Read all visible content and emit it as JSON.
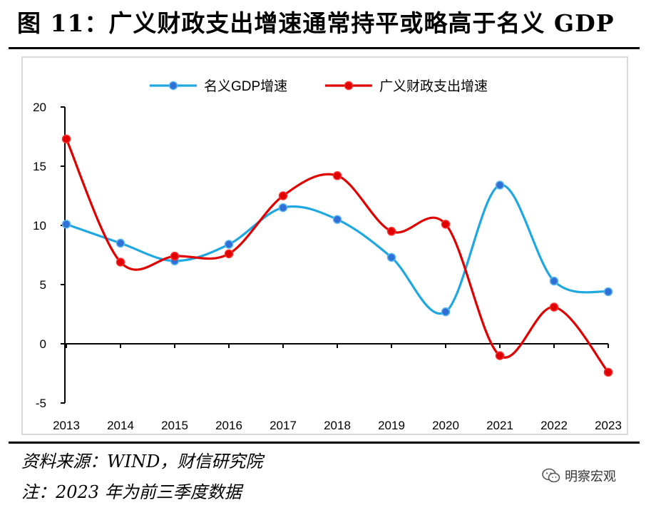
{
  "title": "图 11：广义财政支出增速通常持平或略高于名义 GDP",
  "notes": {
    "source": "资料来源：WIND，财信研究院",
    "note": "注：2023 年为前三季度数据"
  },
  "watermark": {
    "text": "明察宏观",
    "icon": "wechat-icon"
  },
  "chart_data": {
    "type": "line",
    "categories": [
      "2013",
      "2014",
      "2015",
      "2016",
      "2017",
      "2018",
      "2019",
      "2020",
      "2021",
      "2022",
      "2023"
    ],
    "series": [
      {
        "name": "名义GDP增速",
        "color": "#1ea7e0",
        "values": [
          10.1,
          8.5,
          7.0,
          8.4,
          11.5,
          10.5,
          7.3,
          2.7,
          13.4,
          5.3,
          4.4
        ]
      },
      {
        "name": "广义财政支出增速",
        "color": "#e00000",
        "values": [
          17.3,
          6.9,
          7.4,
          7.6,
          12.5,
          14.2,
          9.5,
          10.1,
          -1.0,
          3.1,
          -2.4
        ]
      }
    ],
    "yticks": [
      "20",
      "15",
      "10",
      "5",
      "0",
      "-5"
    ],
    "ylim": [
      -5,
      20
    ],
    "grid": false,
    "legend": "top-center",
    "smooth": true
  }
}
